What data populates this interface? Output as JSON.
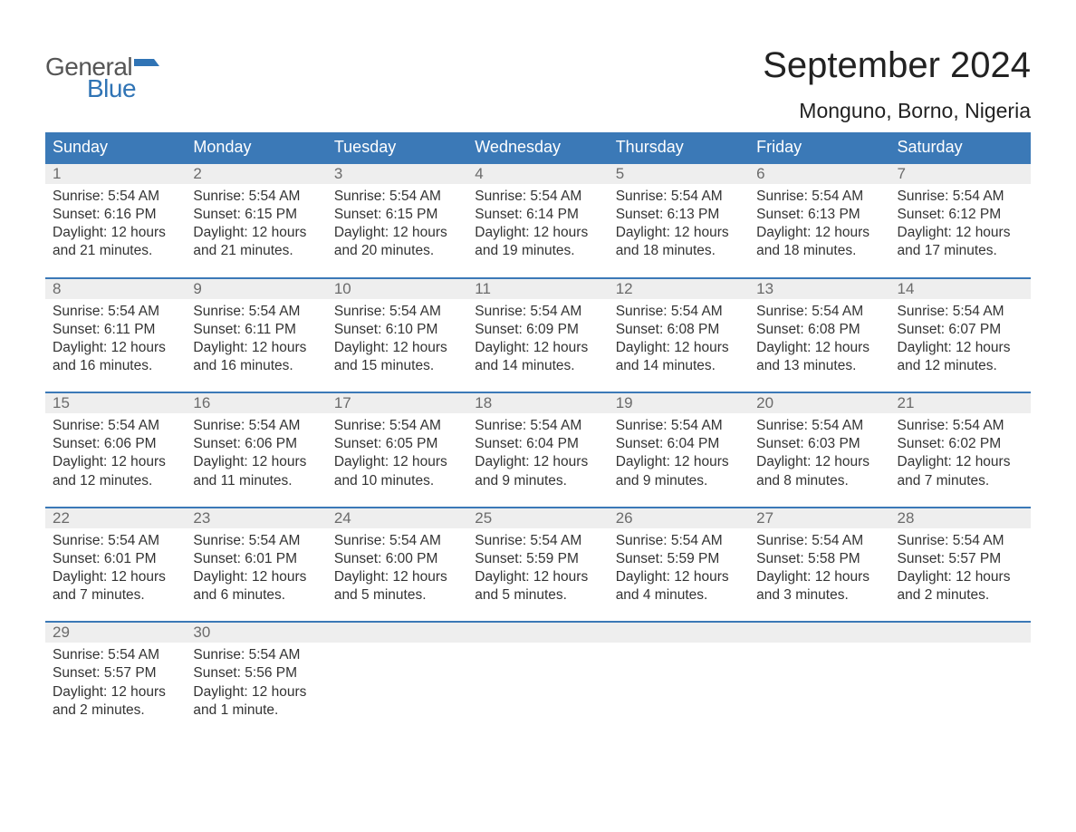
{
  "logo": {
    "word1": "General",
    "word2": "Blue",
    "color_general": "#555555",
    "color_blue": "#3074b5",
    "flag_color": "#3074b5"
  },
  "title": "September 2024",
  "location": "Monguno, Borno, Nigeria",
  "colors": {
    "header_bg": "#3b79b7",
    "header_fg": "#ffffff",
    "daynum_bg": "#eeeeee",
    "daynum_fg": "#6b6b6b",
    "body_fg": "#333333",
    "week_border": "#3b79b7",
    "page_bg": "#ffffff"
  },
  "weekdays": [
    "Sunday",
    "Monday",
    "Tuesday",
    "Wednesday",
    "Thursday",
    "Friday",
    "Saturday"
  ],
  "weeks": [
    {
      "days": [
        {
          "num": "1",
          "sunrise": "Sunrise: 5:54 AM",
          "sunset": "Sunset: 6:16 PM",
          "daylight": "Daylight: 12 hours and 21 minutes."
        },
        {
          "num": "2",
          "sunrise": "Sunrise: 5:54 AM",
          "sunset": "Sunset: 6:15 PM",
          "daylight": "Daylight: 12 hours and 21 minutes."
        },
        {
          "num": "3",
          "sunrise": "Sunrise: 5:54 AM",
          "sunset": "Sunset: 6:15 PM",
          "daylight": "Daylight: 12 hours and 20 minutes."
        },
        {
          "num": "4",
          "sunrise": "Sunrise: 5:54 AM",
          "sunset": "Sunset: 6:14 PM",
          "daylight": "Daylight: 12 hours and 19 minutes."
        },
        {
          "num": "5",
          "sunrise": "Sunrise: 5:54 AM",
          "sunset": "Sunset: 6:13 PM",
          "daylight": "Daylight: 12 hours and 18 minutes."
        },
        {
          "num": "6",
          "sunrise": "Sunrise: 5:54 AM",
          "sunset": "Sunset: 6:13 PM",
          "daylight": "Daylight: 12 hours and 18 minutes."
        },
        {
          "num": "7",
          "sunrise": "Sunrise: 5:54 AM",
          "sunset": "Sunset: 6:12 PM",
          "daylight": "Daylight: 12 hours and 17 minutes."
        }
      ]
    },
    {
      "days": [
        {
          "num": "8",
          "sunrise": "Sunrise: 5:54 AM",
          "sunset": "Sunset: 6:11 PM",
          "daylight": "Daylight: 12 hours and 16 minutes."
        },
        {
          "num": "9",
          "sunrise": "Sunrise: 5:54 AM",
          "sunset": "Sunset: 6:11 PM",
          "daylight": "Daylight: 12 hours and 16 minutes."
        },
        {
          "num": "10",
          "sunrise": "Sunrise: 5:54 AM",
          "sunset": "Sunset: 6:10 PM",
          "daylight": "Daylight: 12 hours and 15 minutes."
        },
        {
          "num": "11",
          "sunrise": "Sunrise: 5:54 AM",
          "sunset": "Sunset: 6:09 PM",
          "daylight": "Daylight: 12 hours and 14 minutes."
        },
        {
          "num": "12",
          "sunrise": "Sunrise: 5:54 AM",
          "sunset": "Sunset: 6:08 PM",
          "daylight": "Daylight: 12 hours and 14 minutes."
        },
        {
          "num": "13",
          "sunrise": "Sunrise: 5:54 AM",
          "sunset": "Sunset: 6:08 PM",
          "daylight": "Daylight: 12 hours and 13 minutes."
        },
        {
          "num": "14",
          "sunrise": "Sunrise: 5:54 AM",
          "sunset": "Sunset: 6:07 PM",
          "daylight": "Daylight: 12 hours and 12 minutes."
        }
      ]
    },
    {
      "days": [
        {
          "num": "15",
          "sunrise": "Sunrise: 5:54 AM",
          "sunset": "Sunset: 6:06 PM",
          "daylight": "Daylight: 12 hours and 12 minutes."
        },
        {
          "num": "16",
          "sunrise": "Sunrise: 5:54 AM",
          "sunset": "Sunset: 6:06 PM",
          "daylight": "Daylight: 12 hours and 11 minutes."
        },
        {
          "num": "17",
          "sunrise": "Sunrise: 5:54 AM",
          "sunset": "Sunset: 6:05 PM",
          "daylight": "Daylight: 12 hours and 10 minutes."
        },
        {
          "num": "18",
          "sunrise": "Sunrise: 5:54 AM",
          "sunset": "Sunset: 6:04 PM",
          "daylight": "Daylight: 12 hours and 9 minutes."
        },
        {
          "num": "19",
          "sunrise": "Sunrise: 5:54 AM",
          "sunset": "Sunset: 6:04 PM",
          "daylight": "Daylight: 12 hours and 9 minutes."
        },
        {
          "num": "20",
          "sunrise": "Sunrise: 5:54 AM",
          "sunset": "Sunset: 6:03 PM",
          "daylight": "Daylight: 12 hours and 8 minutes."
        },
        {
          "num": "21",
          "sunrise": "Sunrise: 5:54 AM",
          "sunset": "Sunset: 6:02 PM",
          "daylight": "Daylight: 12 hours and 7 minutes."
        }
      ]
    },
    {
      "days": [
        {
          "num": "22",
          "sunrise": "Sunrise: 5:54 AM",
          "sunset": "Sunset: 6:01 PM",
          "daylight": "Daylight: 12 hours and 7 minutes."
        },
        {
          "num": "23",
          "sunrise": "Sunrise: 5:54 AM",
          "sunset": "Sunset: 6:01 PM",
          "daylight": "Daylight: 12 hours and 6 minutes."
        },
        {
          "num": "24",
          "sunrise": "Sunrise: 5:54 AM",
          "sunset": "Sunset: 6:00 PM",
          "daylight": "Daylight: 12 hours and 5 minutes."
        },
        {
          "num": "25",
          "sunrise": "Sunrise: 5:54 AM",
          "sunset": "Sunset: 5:59 PM",
          "daylight": "Daylight: 12 hours and 5 minutes."
        },
        {
          "num": "26",
          "sunrise": "Sunrise: 5:54 AM",
          "sunset": "Sunset: 5:59 PM",
          "daylight": "Daylight: 12 hours and 4 minutes."
        },
        {
          "num": "27",
          "sunrise": "Sunrise: 5:54 AM",
          "sunset": "Sunset: 5:58 PM",
          "daylight": "Daylight: 12 hours and 3 minutes."
        },
        {
          "num": "28",
          "sunrise": "Sunrise: 5:54 AM",
          "sunset": "Sunset: 5:57 PM",
          "daylight": "Daylight: 12 hours and 2 minutes."
        }
      ]
    },
    {
      "days": [
        {
          "num": "29",
          "sunrise": "Sunrise: 5:54 AM",
          "sunset": "Sunset: 5:57 PM",
          "daylight": "Daylight: 12 hours and 2 minutes."
        },
        {
          "num": "30",
          "sunrise": "Sunrise: 5:54 AM",
          "sunset": "Sunset: 5:56 PM",
          "daylight": "Daylight: 12 hours and 1 minute."
        },
        {
          "num": "",
          "empty": true
        },
        {
          "num": "",
          "empty": true
        },
        {
          "num": "",
          "empty": true
        },
        {
          "num": "",
          "empty": true
        },
        {
          "num": "",
          "empty": true
        }
      ]
    }
  ]
}
